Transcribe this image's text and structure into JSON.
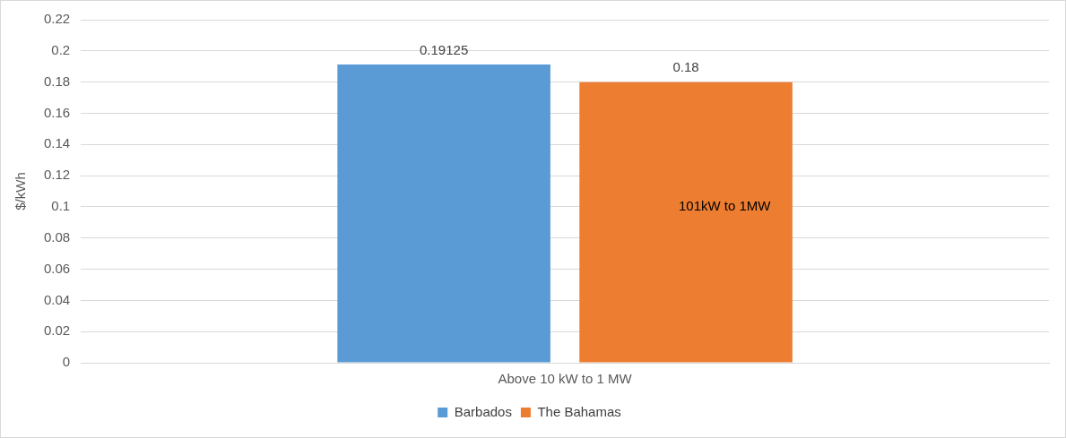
{
  "chart_data": {
    "type": "bar",
    "ylabel": "$/kWh",
    "categories": [
      "Above 10 kW to 1 MW"
    ],
    "series": [
      {
        "name": "Barbados",
        "color": "#5b9bd5",
        "values": [
          0.19125
        ]
      },
      {
        "name": "The Bahamas",
        "color": "#ed7d31",
        "values": [
          0.18
        ]
      }
    ],
    "ylim": [
      0,
      0.22
    ],
    "yticks": [
      0,
      0.02,
      0.04,
      0.06,
      0.08,
      0.1,
      0.12,
      0.14,
      0.16,
      0.18,
      0.2,
      0.22
    ],
    "grid": "y",
    "legend": "bottom",
    "data_labels": true,
    "annotations": [
      "101kW to 1MW"
    ]
  }
}
